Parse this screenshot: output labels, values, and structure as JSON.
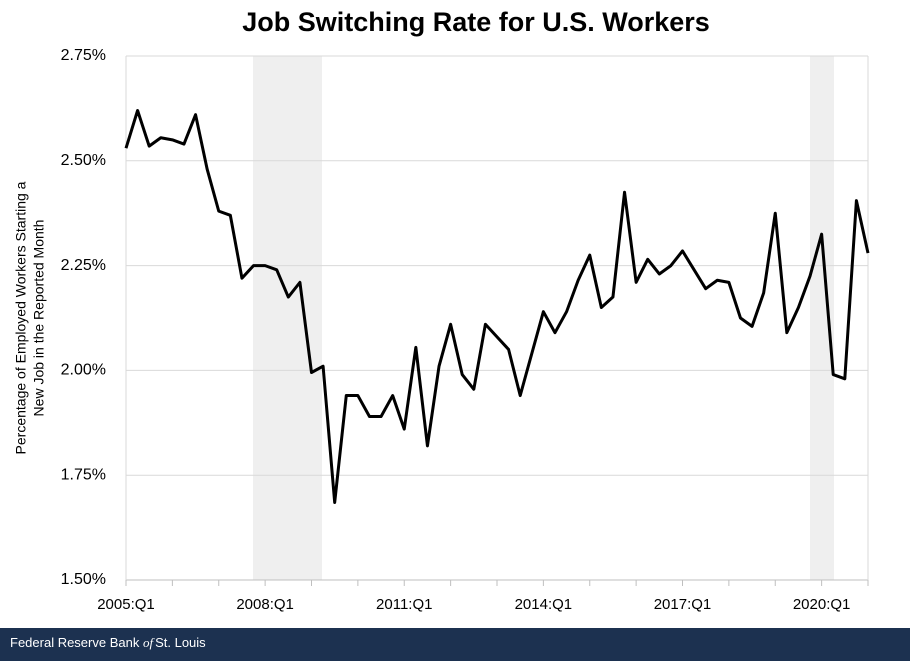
{
  "chart_data": {
    "type": "line",
    "title": "Job Switching Rate for U.S. Workers",
    "ylabel": [
      "Percentage of Employed Workers Starting a",
      "New Job in the Reported Month"
    ],
    "categories": [
      "2005:Q1",
      null,
      null,
      null,
      null,
      null,
      null,
      null,
      null,
      null,
      null,
      null,
      "2008:Q1",
      null,
      null,
      null,
      null,
      null,
      null,
      null,
      null,
      null,
      null,
      null,
      "2011:Q1",
      null,
      null,
      null,
      null,
      null,
      null,
      null,
      null,
      null,
      null,
      null,
      "2014:Q1",
      null,
      null,
      null,
      null,
      null,
      null,
      null,
      null,
      null,
      null,
      null,
      "2017:Q1",
      null,
      null,
      null,
      null,
      null,
      null,
      null,
      null,
      null,
      null,
      null,
      "2020:Q1",
      null,
      null,
      null,
      null
    ],
    "values": [
      2.53,
      2.62,
      2.535,
      2.555,
      2.55,
      2.54,
      2.61,
      2.48,
      2.38,
      2.37,
      2.22,
      2.25,
      2.25,
      2.24,
      2.175,
      2.21,
      1.995,
      2.01,
      1.685,
      1.94,
      1.94,
      1.89,
      1.89,
      1.94,
      1.86,
      2.055,
      1.82,
      2.01,
      2.11,
      1.99,
      1.955,
      2.11,
      2.08,
      2.05,
      1.94,
      2.04,
      2.14,
      2.09,
      2.14,
      2.215,
      2.275,
      2.15,
      2.175,
      2.425,
      2.21,
      2.265,
      2.23,
      2.25,
      2.285,
      2.24,
      2.195,
      2.215,
      2.21,
      2.125,
      2.105,
      2.185,
      2.375,
      2.09,
      2.15,
      2.225,
      2.325,
      1.99,
      1.98,
      2.405,
      2.28
    ],
    "color": "#000000",
    "ylim": [
      1.5,
      2.75
    ],
    "yticks": [
      {
        "value": 1.5,
        "label": "1.50%"
      },
      {
        "value": 1.75,
        "label": "1.75%"
      },
      {
        "value": 2.0,
        "label": "2.00%"
      },
      {
        "value": 2.25,
        "label": "2.25%"
      },
      {
        "value": 2.5,
        "label": "2.50%"
      },
      {
        "value": 2.75,
        "label": "2.75%"
      }
    ],
    "grid": true,
    "footer": [
      "Federal Reserve Bank",
      "of",
      "St. Louis"
    ]
  }
}
